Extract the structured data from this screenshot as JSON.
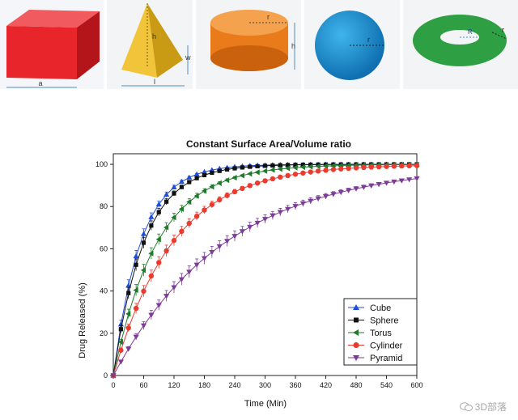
{
  "shapes": [
    {
      "name": "cube",
      "dim_labels": [
        "a"
      ]
    },
    {
      "name": "pyramid",
      "dim_labels": [
        "h",
        "w",
        "l"
      ]
    },
    {
      "name": "cylinder",
      "dim_labels": [
        "r",
        "h"
      ]
    },
    {
      "name": "sphere",
      "dim_labels": [
        "r"
      ]
    },
    {
      "name": "torus",
      "dim_labels": [
        "R",
        "r"
      ]
    }
  ],
  "watermark": "3D部落",
  "colors": {
    "cube": "#1f4ed8",
    "sphere": "#111111",
    "torus": "#1f7a2a",
    "cylinder": "#ea3b2e",
    "pyramid": "#7d3c98"
  },
  "chart_data": {
    "type": "line",
    "title": "Constant Surface Area/Volume ratio",
    "xlabel": "Time (Min)",
    "ylabel": "Drug Released (%)",
    "xlim": [
      0,
      600
    ],
    "ylim": [
      0,
      105
    ],
    "xticks": [
      0,
      60,
      120,
      180,
      240,
      300,
      360,
      420,
      480,
      540,
      600
    ],
    "yticks": [
      0,
      20,
      40,
      60,
      80,
      100
    ],
    "legend_placement": "bottom-right",
    "grid": false,
    "series": [
      {
        "name": "Cube",
        "marker": "triangle-up",
        "color": "#1f4ed8",
        "k": 0.0185
      },
      {
        "name": "Sphere",
        "marker": "square",
        "color": "#111111",
        "k": 0.0165
      },
      {
        "name": "Torus",
        "marker": "triangle-left",
        "color": "#1f7a2a",
        "k": 0.0115
      },
      {
        "name": "Cylinder",
        "marker": "circle",
        "color": "#ea3b2e",
        "k": 0.0085
      },
      {
        "name": "Pyramid",
        "marker": "triangle-down",
        "color": "#7d3c98",
        "k": 0.0045
      }
    ]
  }
}
